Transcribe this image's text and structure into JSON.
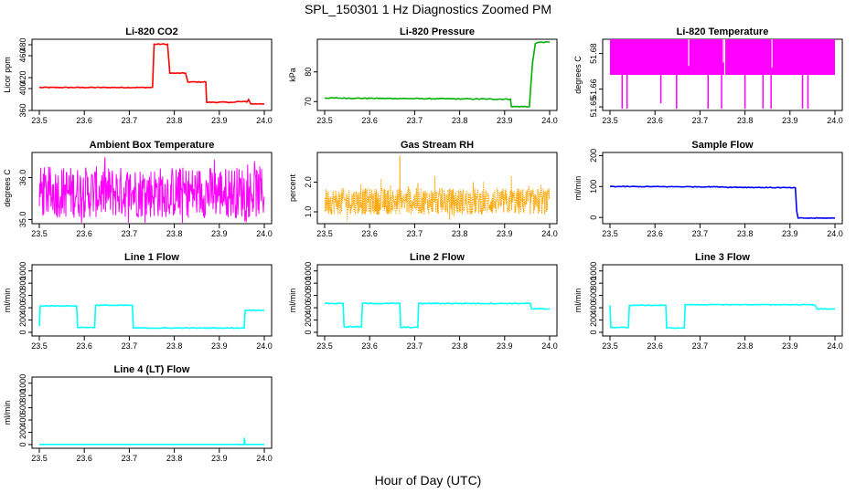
{
  "figure": {
    "title": "SPL_150301  1 Hz Diagnostics Zoomed PM",
    "xlabel": "Hour of Day (UTC)"
  },
  "chart_data": [
    {
      "id": "co2",
      "type": "line",
      "title": "Li-820 CO2",
      "ylabel": "Licor ppm",
      "color": "#ff0000",
      "xlim": [
        23.5,
        24.0
      ],
      "ylim": [
        360,
        490
      ],
      "xticks": [
        "23.5",
        "23.6",
        "23.7",
        "23.8",
        "23.9",
        "24.0"
      ],
      "yticks": [
        {
          "v": 360,
          "t": "360"
        },
        {
          "v": 400,
          "t": "400"
        },
        {
          "v": 420,
          "t": "420"
        },
        {
          "v": 460,
          "t": "460"
        },
        {
          "v": 480,
          "t": "480"
        }
      ],
      "series": [
        {
          "name": "CO2",
          "mode": "step",
          "noise": 0.8,
          "x": [
            23.5,
            23.645,
            23.745,
            23.755,
            23.785,
            23.79,
            23.8,
            23.825,
            23.83,
            23.87,
            23.872,
            23.925,
            23.938,
            23.965,
            23.97,
            24.0
          ],
          "y": [
            402,
            402,
            402,
            481,
            481,
            428,
            428,
            428,
            412,
            412,
            375,
            375,
            376,
            380,
            372,
            372
          ]
        }
      ]
    },
    {
      "id": "pressure",
      "type": "line",
      "title": "Li-820 Pressure",
      "ylabel": "kPa",
      "color": "#00b000",
      "xlim": [
        23.5,
        24.0
      ],
      "ylim": [
        67,
        91
      ],
      "xticks": [
        "23.5",
        "23.6",
        "23.7",
        "23.8",
        "23.9",
        "24.0"
      ],
      "yticks": [
        {
          "v": 70,
          "t": "70"
        },
        {
          "v": 80,
          "t": "80"
        }
      ],
      "series": [
        {
          "name": "Pressure",
          "mode": "line",
          "noise": 0.15,
          "x": [
            23.5,
            23.7,
            23.913,
            23.915,
            23.955,
            23.958,
            23.962,
            23.968,
            23.975,
            24.0
          ],
          "y": [
            71.2,
            71.0,
            70.8,
            68.3,
            68.3,
            75,
            83,
            89.5,
            90,
            90
          ]
        }
      ]
    },
    {
      "id": "licor_temp",
      "type": "line",
      "title": "Li-820 Temperature",
      "ylabel": "degrees C",
      "color": "#ff00ff",
      "xlim": [
        23.5,
        24.0
      ],
      "ylim": [
        51.648,
        51.688
      ],
      "xticks": [
        "23.5",
        "23.6",
        "23.7",
        "23.8",
        "23.9",
        "24.0"
      ],
      "yticks": [
        {
          "v": 51.65,
          "t": "51.65"
        },
        {
          "v": 51.66,
          "t": "51.66"
        },
        {
          "v": 51.68,
          "t": "51.68"
        }
      ],
      "band": [
        51.668,
        51.688
      ],
      "spikes_down": [
        {
          "x": 23.527,
          "y": 51.649
        },
        {
          "x": 23.538,
          "y": 51.649
        },
        {
          "x": 23.613,
          "y": 51.652
        },
        {
          "x": 23.648,
          "y": 51.649
        },
        {
          "x": 23.718,
          "y": 51.649
        },
        {
          "x": 23.748,
          "y": 51.649
        },
        {
          "x": 23.8,
          "y": 51.649
        },
        {
          "x": 23.84,
          "y": 51.649
        },
        {
          "x": 23.858,
          "y": 51.649
        },
        {
          "x": 23.928,
          "y": 51.649
        },
        {
          "x": 23.94,
          "y": 51.649
        }
      ],
      "spikes_up": [
        {
          "x": 23.675,
          "y": 51.673
        },
        {
          "x": 23.752,
          "y": 51.675
        },
        {
          "x": 23.755,
          "y": 51.666
        },
        {
          "x": 23.86,
          "y": 51.672
        }
      ]
    },
    {
      "id": "box_temp",
      "type": "line",
      "title": "Ambient Box Temperature",
      "ylabel": "degrees C",
      "color": "#ff00ff",
      "xlim": [
        23.5,
        24.0
      ],
      "ylim": [
        34.9,
        36.6
      ],
      "xticks": [
        "23.5",
        "23.6",
        "23.7",
        "23.8",
        "23.9",
        "24.0"
      ],
      "yticks": [
        {
          "v": 35.0,
          "t": "35.0"
        },
        {
          "v": 36.0,
          "t": "36.0"
        }
      ],
      "series": [
        {
          "name": "Box temperature",
          "mode": "noise",
          "center": 35.65,
          "amp": 0.62,
          "points": 500
        }
      ]
    },
    {
      "id": "rh",
      "type": "line",
      "title": "Gas Stream RH",
      "ylabel": "percent",
      "color": "#ffa500",
      "xlim": [
        23.5,
        24.0
      ],
      "ylim": [
        0.6,
        3.0
      ],
      "xticks": [
        "23.5",
        "23.6",
        "23.7",
        "23.8",
        "23.9",
        "24.0"
      ],
      "yticks": [
        {
          "v": 1.0,
          "t": "1.0"
        },
        {
          "v": 2.0,
          "t": "2.0"
        }
      ],
      "series": [
        {
          "name": "RH",
          "mode": "noise",
          "center": 1.35,
          "amp": 0.45,
          "points": 700,
          "dashed": true,
          "peaks": [
            {
              "x": 23.667,
              "y": 2.9
            },
            {
              "x": 23.625,
              "y": 2.1
            },
            {
              "x": 23.745,
              "y": 2.2
            },
            {
              "x": 23.83,
              "y": 2.0
            },
            {
              "x": 23.915,
              "y": 2.2
            }
          ]
        }
      ]
    },
    {
      "id": "sample_flow",
      "type": "line",
      "title": "Sample Flow",
      "ylabel": "ml/min",
      "color": "#0000ff",
      "xlim": [
        23.5,
        24.0
      ],
      "ylim": [
        -20,
        210
      ],
      "xticks": [
        "23.5",
        "23.6",
        "23.7",
        "23.8",
        "23.9",
        "24.0"
      ],
      "yticks": [
        {
          "v": 0,
          "t": "0"
        },
        {
          "v": 100,
          "t": "100"
        },
        {
          "v": 200,
          "t": "200"
        }
      ],
      "series": [
        {
          "name": "Sample flow",
          "mode": "line",
          "noise": 1.2,
          "x": [
            23.5,
            23.75,
            23.752,
            23.912,
            23.915,
            23.918,
            24.0
          ],
          "y": [
            100,
            99,
            98,
            96,
            20,
            -2,
            -2
          ]
        }
      ]
    },
    {
      "id": "line1",
      "type": "line",
      "title": "Line 1 Flow",
      "ylabel": "ml/min",
      "color": "#00ffff",
      "xlim": [
        23.5,
        24.0
      ],
      "ylim": [
        -60,
        1100
      ],
      "xticks": [
        "23.5",
        "23.6",
        "23.7",
        "23.8",
        "23.9",
        "24.0"
      ],
      "yticks": [
        {
          "v": 0,
          "t": "0"
        },
        {
          "v": 200,
          "t": "200"
        },
        {
          "v": 400,
          "t": "400"
        },
        {
          "v": 600,
          "t": "600"
        },
        {
          "v": 800,
          "t": "800"
        },
        {
          "v": 1000,
          "t": "1000"
        }
      ],
      "series": [
        {
          "name": "Line 1",
          "mode": "step",
          "noise": 6,
          "x": [
            23.5,
            23.502,
            23.583,
            23.585,
            23.623,
            23.625,
            23.707,
            23.709,
            23.955,
            23.958,
            24.0
          ],
          "y": [
            100,
            430,
            430,
            80,
            80,
            440,
            440,
            70,
            70,
            360,
            360
          ]
        }
      ]
    },
    {
      "id": "line2",
      "type": "line",
      "title": "Line 2 Flow",
      "ylabel": "ml/min",
      "color": "#00ffff",
      "xlim": [
        23.5,
        24.0
      ],
      "ylim": [
        -60,
        1100
      ],
      "xticks": [
        "23.5",
        "23.6",
        "23.7",
        "23.8",
        "23.9",
        "24.0"
      ],
      "yticks": [
        {
          "v": 0,
          "t": "0"
        },
        {
          "v": 200,
          "t": "200"
        },
        {
          "v": 400,
          "t": "400"
        },
        {
          "v": 600,
          "t": "600"
        },
        {
          "v": 800,
          "t": "800"
        },
        {
          "v": 1000,
          "t": "1000"
        }
      ],
      "series": [
        {
          "name": "Line 2",
          "mode": "step",
          "noise": 8,
          "x": [
            23.5,
            23.541,
            23.543,
            23.582,
            23.584,
            23.667,
            23.669,
            23.707,
            23.709,
            23.957,
            23.96,
            24.0
          ],
          "y": [
            470,
            470,
            90,
            90,
            470,
            470,
            80,
            80,
            470,
            470,
            380,
            380
          ]
        }
      ]
    },
    {
      "id": "line3",
      "type": "line",
      "title": "Line 3 Flow",
      "ylabel": "ml/min",
      "color": "#00ffff",
      "xlim": [
        23.5,
        24.0
      ],
      "ylim": [
        -60,
        1100
      ],
      "xticks": [
        "23.5",
        "23.6",
        "23.7",
        "23.8",
        "23.9",
        "24.0"
      ],
      "yticks": [
        {
          "v": 0,
          "t": "0"
        },
        {
          "v": 200,
          "t": "200"
        },
        {
          "v": 400,
          "t": "400"
        },
        {
          "v": 600,
          "t": "600"
        },
        {
          "v": 800,
          "t": "800"
        },
        {
          "v": 1000,
          "t": "1000"
        }
      ],
      "series": [
        {
          "name": "Line 3",
          "mode": "step",
          "noise": 5,
          "x": [
            23.5,
            23.502,
            23.541,
            23.543,
            23.624,
            23.626,
            23.665,
            23.667,
            23.957,
            23.96,
            24.0
          ],
          "y": [
            440,
            80,
            80,
            440,
            440,
            70,
            70,
            450,
            430,
            380,
            380
          ]
        }
      ]
    },
    {
      "id": "line4",
      "type": "line",
      "title": "Line 4 (LT) Flow",
      "ylabel": "ml/min",
      "color": "#00ffff",
      "xlim": [
        23.5,
        24.0
      ],
      "ylim": [
        -60,
        1100
      ],
      "xticks": [
        "23.5",
        "23.6",
        "23.7",
        "23.8",
        "23.9",
        "24.0"
      ],
      "yticks": [
        {
          "v": 0,
          "t": "0"
        },
        {
          "v": 200,
          "t": "200"
        },
        {
          "v": 400,
          "t": "400"
        },
        {
          "v": 600,
          "t": "600"
        },
        {
          "v": 800,
          "t": "800"
        },
        {
          "v": 1000,
          "t": "1000"
        }
      ],
      "series": [
        {
          "name": "Line 4",
          "mode": "line",
          "noise": 0,
          "x": [
            23.5,
            23.955,
            23.956,
            23.957,
            23.958,
            24.0
          ],
          "y": [
            3,
            3,
            110,
            3,
            3,
            3
          ]
        }
      ]
    }
  ]
}
